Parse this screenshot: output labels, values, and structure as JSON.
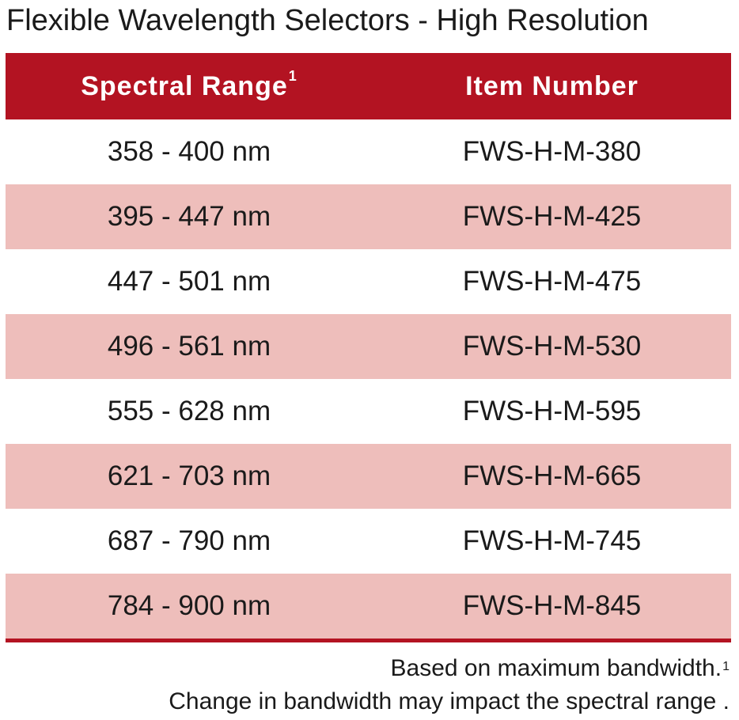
{
  "title": "Flexible Wavelength Selectors - High Resolution",
  "table": {
    "headers": {
      "spectral_range": "Spectral Range",
      "spectral_range_sup": "1",
      "item_number": "Item Number"
    },
    "rows": [
      {
        "range": "358 - 400 nm",
        "item": "FWS-H-M-380"
      },
      {
        "range": "395 - 447 nm",
        "item": "FWS-H-M-425"
      },
      {
        "range": "447 - 501 nm",
        "item": "FWS-H-M-475"
      },
      {
        "range": "496 - 561 nm",
        "item": "FWS-H-M-530"
      },
      {
        "range": "555 - 628 nm",
        "item": "FWS-H-M-595"
      },
      {
        "range": "621 - 703 nm",
        "item": "FWS-H-M-665"
      },
      {
        "range": "687 - 790 nm",
        "item": "FWS-H-M-745"
      },
      {
        "range": "784 - 900 nm",
        "item": "FWS-H-M-845"
      }
    ]
  },
  "footnotes": {
    "line1": "Based on maximum bandwidth.",
    "line1_sup": "1",
    "line2": "Change in bandwidth may impact the spectral range ."
  },
  "colors": {
    "header_bg": "#b31322",
    "row_shade": "#eebebb"
  }
}
